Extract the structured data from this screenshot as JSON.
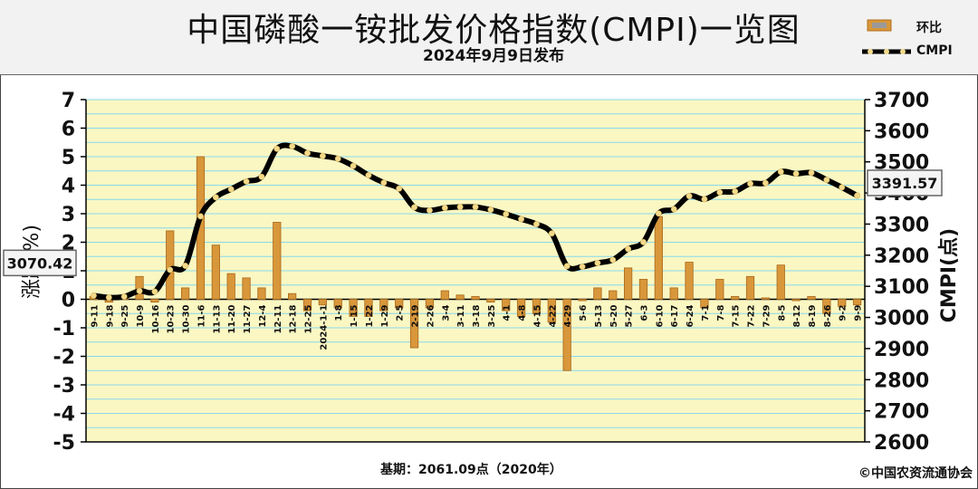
{
  "header": {
    "title": "中国磷酸一铵批发价格指数(CMPI)一览图",
    "subtitle": "2024年9月9日发布"
  },
  "legend": {
    "bar_label": "环比",
    "line_label": "CMPI"
  },
  "footer": {
    "base_note": "基期：2061.09点（2020年）",
    "credit": "©中国农资流通协会"
  },
  "colors": {
    "bar": "#d8973a",
    "line": "#000000",
    "marker": "#f2d98a",
    "grid_band": "#fbf7c2",
    "grid_line": "#88d8ee"
  },
  "chart_data": {
    "type": "bar+line",
    "x": [
      "9-11",
      "9-18",
      "9-25",
      "10-9",
      "10-16",
      "10-23",
      "10-30",
      "11-6",
      "11-13",
      "11-20",
      "11-27",
      "12-4",
      "12-11",
      "12-18",
      "12-25",
      "2024-1-1",
      "1-8",
      "1-15",
      "1-22",
      "1-29",
      "2-5",
      "2-19",
      "2-26",
      "3-4",
      "3-11",
      "3-18",
      "3-25",
      "4-1",
      "4-8",
      "4-15",
      "4-22",
      "4-29",
      "5-6",
      "5-13",
      "5-20",
      "5-27",
      "6-3",
      "6-10",
      "6-17",
      "6-24",
      "7-1",
      "7-8",
      "7-15",
      "7-22",
      "7-29",
      "8-5",
      "8-12",
      "8-19",
      "8-26",
      "9-2",
      "9-9"
    ],
    "series": [
      {
        "name": "环比",
        "axis": "left",
        "type": "bar",
        "values": [
          0.1,
          -0.1,
          0.05,
          0.8,
          -0.1,
          2.4,
          0.4,
          5.0,
          1.9,
          0.9,
          0.75,
          0.4,
          2.7,
          0.2,
          -0.4,
          -0.2,
          -0.3,
          -0.6,
          -0.6,
          -0.4,
          -0.3,
          -1.7,
          -0.3,
          0.3,
          0.15,
          0.1,
          -0.1,
          -0.4,
          -0.6,
          -0.5,
          -0.8,
          -2.5,
          -0.05,
          0.4,
          0.3,
          1.1,
          0.7,
          2.9,
          0.4,
          1.3,
          -0.3,
          0.7,
          0.1,
          0.8,
          0.05,
          1.2,
          -0.05,
          0.1,
          -0.5,
          -0.25,
          -0.2
        ]
      },
      {
        "name": "CMPI",
        "axis": "right",
        "type": "line",
        "values": [
          3070.42,
          3064,
          3067,
          3085,
          3083,
          3153,
          3166,
          3325,
          3386,
          3412,
          3437,
          3452,
          3542,
          3550,
          3528,
          3519,
          3510,
          3487,
          3457,
          3433,
          3414,
          3354,
          3344,
          3352,
          3355,
          3355,
          3346,
          3332,
          3316,
          3300,
          3270,
          3165,
          3163,
          3175,
          3185,
          3220,
          3242,
          3334,
          3348,
          3390,
          3380,
          3402,
          3405,
          3430,
          3432,
          3468,
          3462,
          3465,
          3442,
          3418,
          3391.57
        ]
      }
    ],
    "y_left": {
      "label": "涨跌(%)",
      "range": [
        -5,
        7
      ],
      "ticks": [
        7,
        6,
        5,
        4,
        3,
        2,
        1,
        0,
        -1,
        -2,
        -3,
        -4,
        -5
      ]
    },
    "y_right": {
      "label": "CMPI(点)",
      "range": [
        2600,
        3700
      ],
      "ticks": [
        3700,
        3600,
        3500,
        3400,
        3300,
        3200,
        3100,
        3000,
        2900,
        2800,
        2700,
        2600
      ]
    },
    "annotations": [
      "3070.42",
      "3391.57"
    ],
    "grid": true,
    "legend_position": "top-right"
  }
}
